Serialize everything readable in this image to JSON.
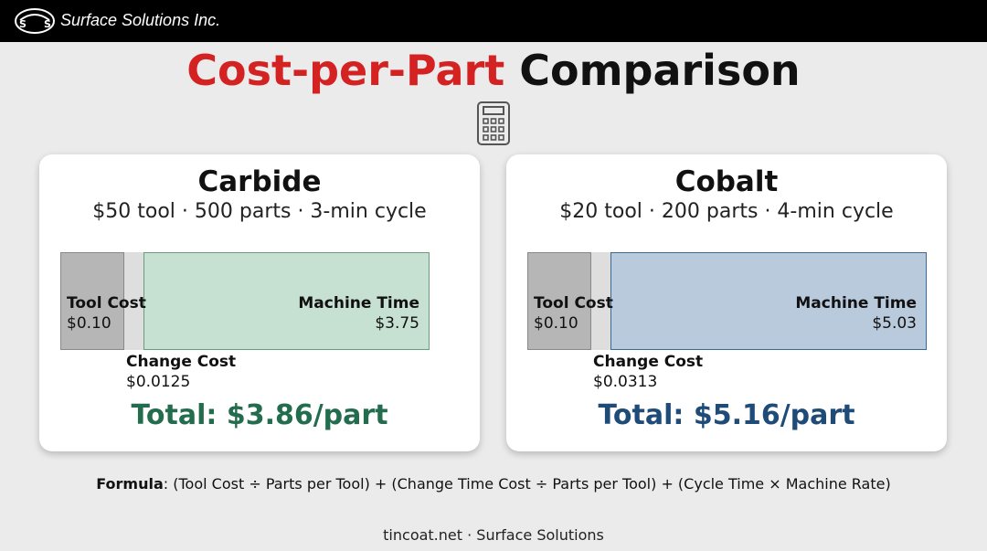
{
  "header": {
    "brand": "Surface Solutions Inc."
  },
  "title": {
    "highlight": "Cost-per-Part",
    "rest": "Comparison"
  },
  "cards": [
    {
      "name": "Carbide",
      "subtitle": "$50 tool · 500 parts · 3-min cycle",
      "tool": {
        "label": "Tool Cost",
        "value": "$0.10"
      },
      "machine": {
        "label": "Machine Time",
        "value": "$3.75"
      },
      "change": {
        "label": "Change Cost",
        "value": "$0.0125"
      },
      "total": "Total: $3.86/part"
    },
    {
      "name": "Cobalt",
      "subtitle": "$20 tool · 200 parts · 4-min cycle",
      "tool": {
        "label": "Tool Cost",
        "value": "$0.10"
      },
      "machine": {
        "label": "Machine Time",
        "value": "$5.03"
      },
      "change": {
        "label": "Change Cost",
        "value": "$0.0313"
      },
      "total": "Total: $5.16/part"
    }
  ],
  "formula": {
    "label": "Formula",
    "text": ": (Tool Cost ÷ Parts per Tool) + (Change Time Cost ÷ Parts per Tool) + (Cycle Time × Machine Rate)"
  },
  "footer": "tincoat.net · Surface Solutions"
}
